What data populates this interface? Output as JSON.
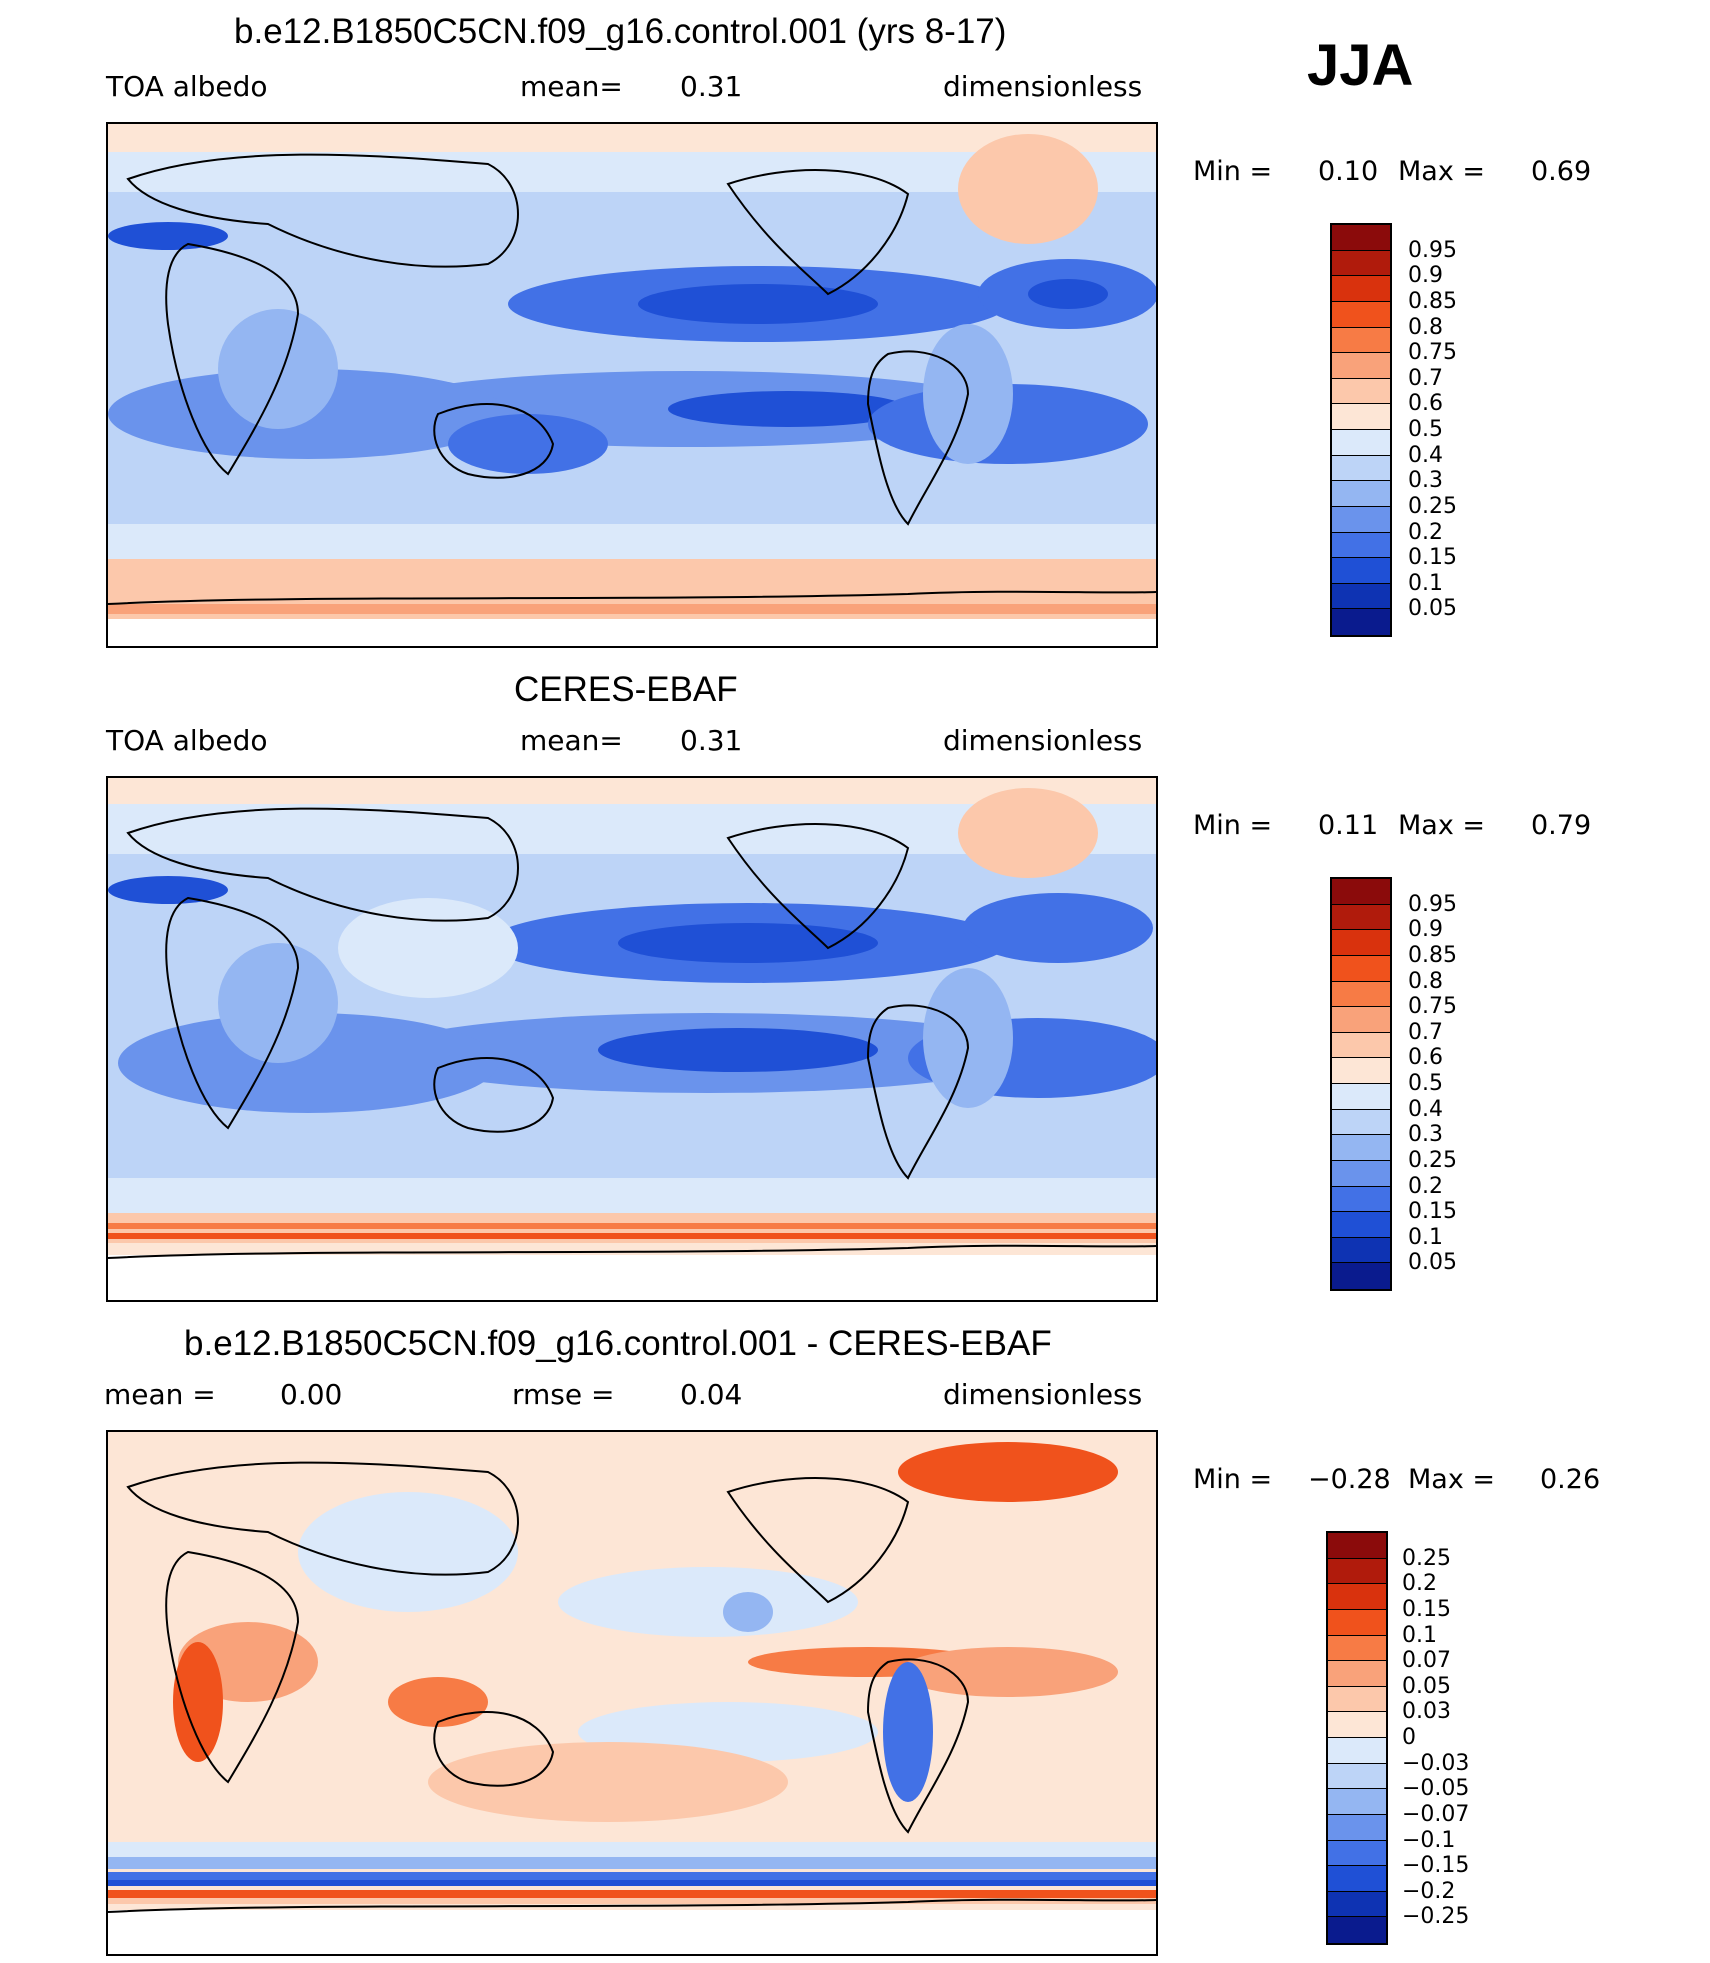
{
  "season": "JJA",
  "panels": [
    {
      "title": "b.e12.B1850C5CN.f09_g16.control.001 (yrs 8-17)",
      "left": "TOA  albedo",
      "center_label": "mean=",
      "center_value": "0.31",
      "right": "dimensionless",
      "min_label": "Min =",
      "min_value": "0.10",
      "max_label": "Max =",
      "max_value": "0.69"
    },
    {
      "title": "CERES-EBAF",
      "left": "TOA  albedo",
      "center_label": "mean=",
      "center_value": "0.31",
      "right": "dimensionless",
      "min_label": "Min =",
      "min_value": "0.11",
      "max_label": "Max =",
      "max_value": "0.79"
    },
    {
      "title": "b.e12.B1850C5CN.f09_g16.control.001 - CERES-EBAF",
      "left_label": "mean =",
      "left_value": "0.00",
      "center_label": "rmse =",
      "center_value": "0.04",
      "right": "dimensionless",
      "min_label": "Min =",
      "min_value": "−0.28",
      "max_label": "Max =",
      "max_value": "0.26"
    }
  ],
  "colorbar_abs": {
    "labels": [
      "0.95",
      "0.9",
      "0.85",
      "0.8",
      "0.75",
      "0.7",
      "0.6",
      "0.5",
      "0.4",
      "0.3",
      "0.25",
      "0.2",
      "0.15",
      "0.1",
      "0.05"
    ],
    "colors": [
      "#8b0b0b",
      "#b01b0c",
      "#d9320d",
      "#f0521c",
      "#f77b45",
      "#f9a27a",
      "#fcc8ab",
      "#fde6d6",
      "#dbe9fa",
      "#bdd4f7",
      "#94b6f2",
      "#6a93ec",
      "#4271e6",
      "#1f50d6",
      "#0e33b3",
      "#0a1b8e"
    ]
  },
  "colorbar_diff": {
    "labels": [
      "0.25",
      "0.2",
      "0.15",
      "0.1",
      "0.07",
      "0.05",
      "0.03",
      "0",
      "−0.03",
      "−0.05",
      "−0.07",
      "−0.1",
      "−0.15",
      "−0.2",
      "−0.25"
    ],
    "colors": [
      "#8b0b0b",
      "#b01b0c",
      "#d9320d",
      "#f0521c",
      "#f77b45",
      "#f9a27a",
      "#fcc8ab",
      "#fde6d6",
      "#dbe9fa",
      "#bdd4f7",
      "#94b6f2",
      "#6a93ec",
      "#4271e6",
      "#1f50d6",
      "#0e33b3",
      "#0a1b8e"
    ]
  }
}
